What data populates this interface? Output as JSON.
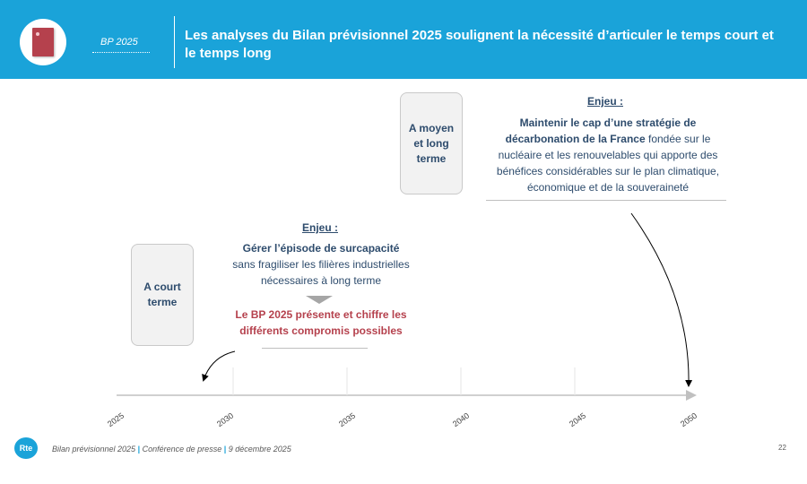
{
  "header": {
    "badge": "BP 2025",
    "title": "Les analyses du Bilan prévisionnel 2025 soulignent la nécessité d’articuler le temps court et le temps long"
  },
  "short_term": {
    "box_label": "A court terme",
    "enjeu_title": "Enjeu :",
    "enjeu_bold": "Gérer l’épisode de surcapacité",
    "enjeu_rest": "sans fragiliser les filières industrielles nécessaires à long terme",
    "highlight": "Le BP 2025 présente et chiffre les différents compromis possibles"
  },
  "long_term": {
    "box_label": "A moyen et long terme",
    "enjeu_title": "Enjeu :",
    "enjeu_bold": "Maintenir le cap d’une stratégie de décarbonation de la France",
    "enjeu_rest": " fondée sur le nucléaire et les renouvelables qui apporte des bénéfices considérables sur le plan climatique, économique et de la souveraineté"
  },
  "timeline": {
    "ticks": [
      "2025",
      "2030",
      "2035",
      "2040",
      "2045",
      "2050"
    ]
  },
  "footer": {
    "logo": "Rte",
    "part1": "Bilan prévisionnel 2025",
    "part2": "Conférence de presse",
    "part3": "9 décembre 2025",
    "separator": "|",
    "page_number": "22"
  },
  "colors": {
    "header_blue": "#1aa3d9",
    "navy_text": "#2e4c6d",
    "highlight_red": "#b5414d"
  }
}
